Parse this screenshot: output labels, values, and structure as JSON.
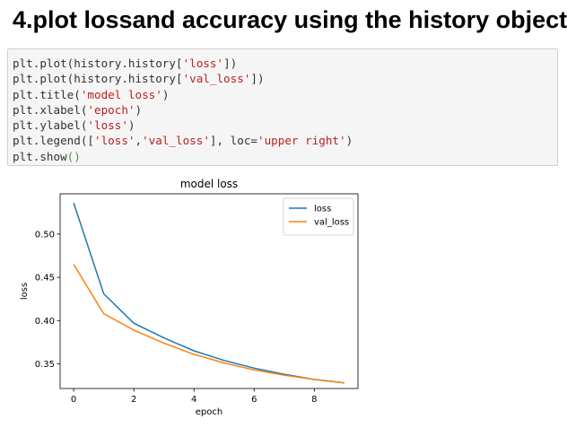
{
  "heading": "4.plot lossand accuracy using the history object",
  "code": {
    "lines": [
      [
        {
          "t": "plt.plot(history.history["
        },
        {
          "t": "'loss'",
          "s": 1
        },
        {
          "t": "])"
        }
      ],
      [
        {
          "t": "plt.plot(history.history["
        },
        {
          "t": "'val_loss'",
          "s": 1
        },
        {
          "t": "])"
        }
      ],
      [
        {
          "t": "plt.title("
        },
        {
          "t": "'model loss'",
          "s": 1
        },
        {
          "t": ")"
        }
      ],
      [
        {
          "t": "plt.xlabel("
        },
        {
          "t": "'epoch'",
          "s": 1
        },
        {
          "t": ")"
        }
      ],
      [
        {
          "t": "plt.ylabel("
        },
        {
          "t": "'loss'",
          "s": 1
        },
        {
          "t": ")"
        }
      ],
      [
        {
          "t": "plt.legend(["
        },
        {
          "t": "'loss'",
          "s": 1
        },
        {
          "t": ","
        },
        {
          "t": "'val_loss'",
          "s": 1
        },
        {
          "t": "], loc="
        },
        {
          "t": "'upper right'",
          "s": 1
        },
        {
          "t": ")"
        }
      ],
      [
        {
          "t": "plt.show"
        },
        {
          "t": "()",
          "p": 1
        }
      ]
    ]
  },
  "chart_data": {
    "type": "line",
    "title": "model loss",
    "xlabel": "epoch",
    "ylabel": "loss",
    "x": [
      0,
      1,
      2,
      3,
      4,
      5,
      6,
      7,
      8,
      9
    ],
    "xlim": [
      -0.45,
      9.45
    ],
    "ylim": [
      0.3215,
      0.5465
    ],
    "xticks": [
      0,
      2,
      4,
      6,
      8
    ],
    "yticks": [
      0.35,
      0.4,
      0.45,
      0.5
    ],
    "ytick_labels": [
      "0.35",
      "0.40",
      "0.45",
      "0.50"
    ],
    "legend_position": "upper right",
    "series": [
      {
        "name": "loss",
        "color": "#1f77b4",
        "values": [
          0.536,
          0.431,
          0.397,
          0.38,
          0.365,
          0.354,
          0.345,
          0.338,
          0.332,
          0.328
        ]
      },
      {
        "name": "val_loss",
        "color": "#ff7f0e",
        "values": [
          0.465,
          0.408,
          0.389,
          0.374,
          0.361,
          0.351,
          0.343,
          0.337,
          0.332,
          0.328
        ]
      }
    ]
  }
}
